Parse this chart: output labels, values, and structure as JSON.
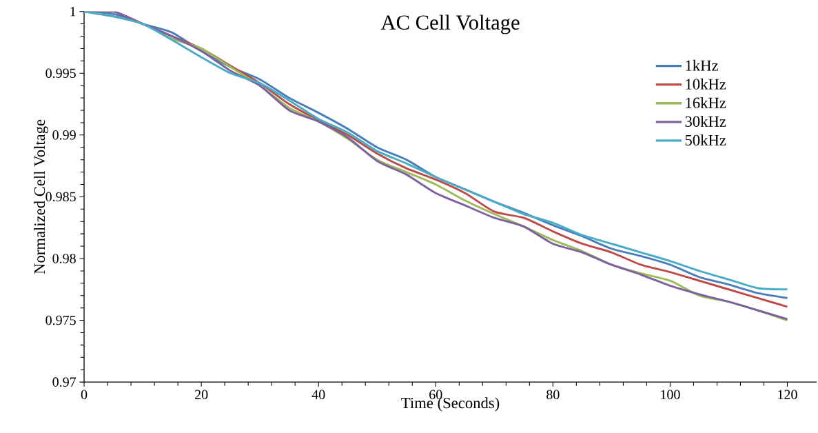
{
  "chart_data": {
    "type": "line",
    "title": "AC Cell Voltage",
    "xlabel": "Time (Seconds)",
    "ylabel": "Normalized Cell Voltage",
    "x": [
      0,
      5,
      10,
      15,
      20,
      25,
      30,
      35,
      40,
      45,
      50,
      55,
      60,
      65,
      70,
      75,
      80,
      85,
      90,
      95,
      100,
      105,
      110,
      115,
      120
    ],
    "series": [
      {
        "name": "1kHz",
        "color": "#4a7ebb",
        "values": [
          1,
          0.9998,
          0.999,
          0.9983,
          0.9968,
          0.9955,
          0.9945,
          0.993,
          0.9918,
          0.9905,
          0.989,
          0.988,
          0.9866,
          0.9856,
          0.9846,
          0.9837,
          0.9827,
          0.9818,
          0.9808,
          0.9802,
          0.9795,
          0.9785,
          0.9779,
          0.9772,
          0.9768
        ]
      },
      {
        "name": "10kHz",
        "color": "#be4b48",
        "values": [
          1,
          1,
          0.999,
          0.998,
          0.997,
          0.9956,
          0.9942,
          0.9925,
          0.9912,
          0.99,
          0.9885,
          0.9873,
          0.9864,
          0.9853,
          0.9838,
          0.9833,
          0.9822,
          0.9812,
          0.9805,
          0.9795,
          0.9789,
          0.9782,
          0.9775,
          0.9768,
          0.9761
        ]
      },
      {
        "name": "16kHz",
        "color": "#9bbb59",
        "values": [
          1,
          0.9996,
          0.999,
          0.9978,
          0.997,
          0.9955,
          0.994,
          0.9922,
          0.9911,
          0.9897,
          0.988,
          0.987,
          0.986,
          0.9847,
          0.9836,
          0.9826,
          0.9815,
          0.9806,
          0.9795,
          0.9788,
          0.9782,
          0.977,
          0.9765,
          0.9758,
          0.975
        ]
      },
      {
        "name": "30kHz",
        "color": "#7d60a0",
        "values": [
          1,
          1,
          0.999,
          0.998,
          0.9968,
          0.9952,
          0.994,
          0.992,
          0.9911,
          0.9898,
          0.9879,
          0.9868,
          0.9853,
          0.9843,
          0.9833,
          0.9826,
          0.9812,
          0.9805,
          0.9795,
          0.9787,
          0.9778,
          0.9771,
          0.9765,
          0.9758,
          0.9751
        ]
      },
      {
        "name": "50kHz",
        "color": "#4bacc6",
        "values": [
          1,
          0.9996,
          0.999,
          0.9977,
          0.9963,
          0.995,
          0.9942,
          0.9928,
          0.9913,
          0.9902,
          0.9887,
          0.9877,
          0.9866,
          0.9856,
          0.9846,
          0.9836,
          0.9829,
          0.9819,
          0.9812,
          0.9805,
          0.9798,
          0.979,
          0.9783,
          0.9776,
          0.9775
        ]
      }
    ],
    "xlim": [
      0,
      125
    ],
    "xticks": [
      0,
      20,
      40,
      60,
      80,
      100,
      120
    ],
    "ylim": [
      0.97,
      1
    ],
    "yticks": [
      0.97,
      0.975,
      0.98,
      0.985,
      0.99,
      0.995,
      1
    ],
    "legend": "right",
    "marker": "none",
    "line_style": "solid"
  }
}
